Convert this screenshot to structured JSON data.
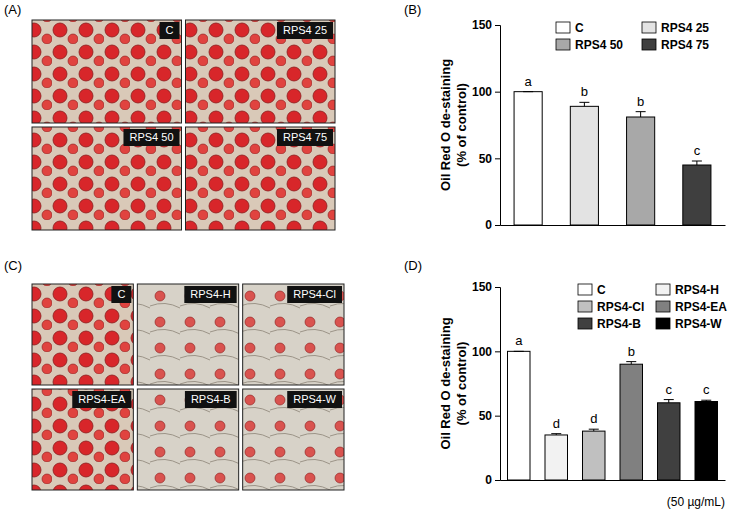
{
  "panel_labels": [
    "(A)",
    "(B)",
    "(C)",
    "(D)"
  ],
  "images": [
    {
      "tiles": [
        "C",
        "RPS4 25",
        "RPS4 50",
        "RPS4 75"
      ]
    },
    {
      "tiles": [
        "C",
        "RPS4-H",
        "RPS4-Cl",
        "RPS4-EA",
        "RPS4-B",
        "RPS4-W"
      ]
    }
  ],
  "chart_data": [
    {
      "type": "bar",
      "y_label": [
        "Oil Red O de-staining",
        "(% of control)"
      ],
      "categories": [
        "C",
        "RPS4 25",
        "RPS4 50",
        "RPS4 75"
      ],
      "values": [
        100,
        89,
        81,
        45
      ],
      "errors": [
        0,
        3,
        4,
        3
      ],
      "significance": [
        "a",
        "b",
        "b",
        "c"
      ],
      "colors": [
        "#ffffff",
        "#e3e3e3",
        "#a8a8a8",
        "#3f3f3f"
      ],
      "ylim": [
        0,
        150
      ],
      "yticks": [
        0,
        50,
        100,
        150
      ],
      "legend": "upper right",
      "tick_labels": "y"
    },
    {
      "type": "bar",
      "y_label": [
        "Oil Red O de-staining",
        "(% of control)"
      ],
      "categories": [
        "C",
        "RPS4-H",
        "RPS4-Cl",
        "RPS4-EA",
        "RPS4-B",
        "RPS4-W"
      ],
      "values": [
        100,
        35,
        38,
        90,
        60,
        61
      ],
      "errors": [
        0,
        1,
        1.5,
        2,
        2.5,
        1
      ],
      "significance": [
        "a",
        "d",
        "d",
        "b",
        "c",
        "c"
      ],
      "colors": [
        "#ffffff",
        "#f2f2f2",
        "#c0c0c0",
        "#808080",
        "#404040",
        "#000000"
      ],
      "ylim": [
        0,
        150
      ],
      "yticks": [
        0,
        50,
        100,
        150
      ],
      "annotation": "(50 µg/mL)",
      "legend": "upper right",
      "tick_labels": "y"
    }
  ]
}
